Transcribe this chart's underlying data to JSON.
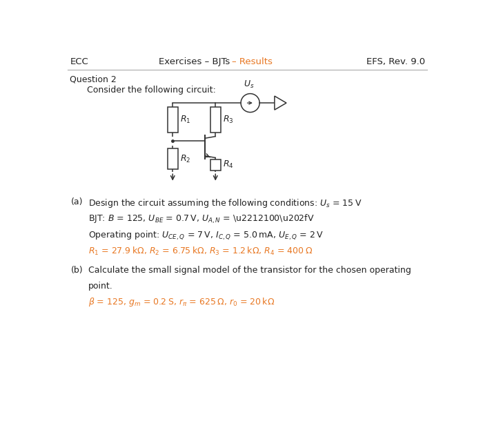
{
  "header_left": "ECC",
  "header_center_black": "Exercises – BJTs",
  "header_center_orange": "– Results",
  "header_right": "EFS, Rev. 9.0",
  "question_title": "Question 2",
  "question_subtitle": "Consider the following circuit:",
  "orange_color": "#E87722",
  "black_color": "#222222",
  "bg_color": "#ffffff",
  "line_color": "#333333"
}
